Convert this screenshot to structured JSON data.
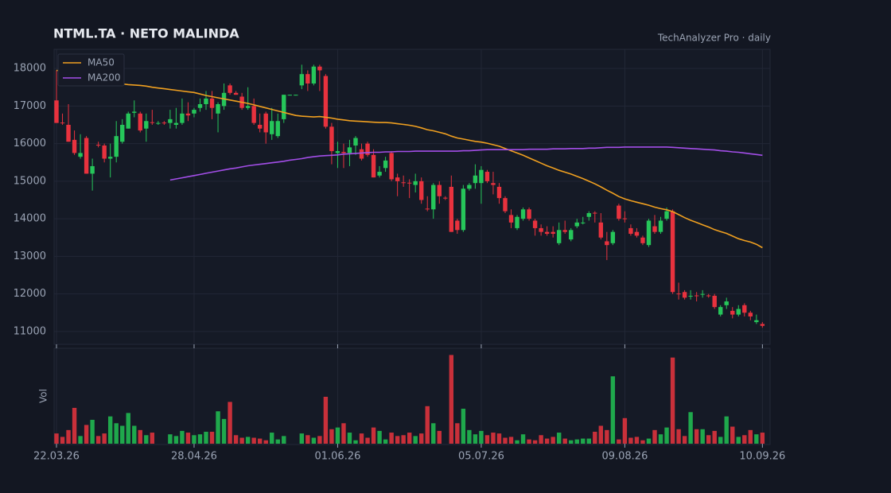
{
  "chart_data": {
    "type": "candlestick",
    "title": "NTML.TA  ·  NETO MALINDA",
    "subtitle": "TechAnalyzer Pro · daily",
    "volume_label": "Vol",
    "legend": "upper left",
    "grid": true,
    "up_color": "#26c65a",
    "down_color": "#e8323e",
    "volume_up_color": "#1fa84c",
    "volume_down_color": "#c9303a",
    "ylim": [
      10680,
      18510
    ],
    "yticks": [
      11000,
      12000,
      13000,
      14000,
      15000,
      16000,
      17000,
      18000
    ],
    "vlim": [
      0,
      110
    ],
    "categories": [
      "22.03.26",
      null,
      null,
      null,
      null,
      null,
      null,
      null,
      null,
      null,
      null,
      null,
      null,
      null,
      null,
      null,
      null,
      null,
      null,
      null,
      null,
      null,
      null,
      "28.04.26",
      null,
      null,
      null,
      null,
      null,
      null,
      null,
      null,
      null,
      null,
      null,
      null,
      null,
      null,
      null,
      null,
      null,
      null,
      null,
      null,
      null,
      null,
      null,
      "01.06.26",
      null,
      null,
      null,
      null,
      null,
      null,
      null,
      null,
      null,
      null,
      null,
      null,
      null,
      null,
      null,
      null,
      null,
      null,
      null,
      null,
      null,
      null,
      null,
      "05.07.26",
      null,
      null,
      null,
      null,
      null,
      null,
      null,
      null,
      null,
      null,
      null,
      null,
      null,
      null,
      null,
      null,
      null,
      null,
      null,
      null,
      null,
      null,
      null,
      "09.08.26",
      null,
      null,
      null,
      null,
      null,
      null,
      null,
      null,
      null,
      null,
      null,
      null,
      null,
      null,
      null,
      null,
      null,
      null,
      null,
      null,
      null,
      null,
      "10.09.26"
    ],
    "ohlc": [
      [
        17150,
        17950,
        16550,
        16550
      ],
      [
        16560,
        16800,
        16500,
        16540
      ],
      [
        16500,
        17050,
        16050,
        16050
      ],
      [
        16100,
        16350,
        15700,
        15750
      ],
      [
        15650,
        16250,
        15600,
        15750
      ],
      [
        16150,
        16200,
        15200,
        15200
      ],
      [
        15200,
        15600,
        14750,
        15400
      ],
      [
        15970,
        16050,
        15900,
        15950
      ],
      [
        15950,
        16000,
        15500,
        15600
      ],
      [
        15600,
        16000,
        15100,
        15650
      ],
      [
        15650,
        16600,
        15500,
        16200
      ],
      [
        16050,
        16650,
        16000,
        16500
      ],
      [
        16400,
        16850,
        16400,
        16800
      ],
      [
        16820,
        17150,
        16700,
        16850
      ],
      [
        16800,
        16850,
        16300,
        16350
      ],
      [
        16400,
        16800,
        16050,
        16600
      ],
      [
        16570,
        16900,
        16500,
        16550
      ],
      [
        16540,
        16600,
        16500,
        16550
      ],
      [
        16560,
        16600,
        16500,
        16550
      ],
      [
        16550,
        16900,
        16400,
        16650
      ],
      [
        16500,
        16950,
        16400,
        16550
      ],
      [
        16550,
        17200,
        16500,
        16800
      ],
      [
        16800,
        17100,
        16600,
        16750
      ],
      [
        16800,
        16950,
        16700,
        16900
      ],
      [
        16950,
        17200,
        16850,
        17050
      ],
      [
        17050,
        17400,
        16900,
        17200
      ],
      [
        17200,
        17400,
        16650,
        16950
      ],
      [
        16800,
        17100,
        16300,
        17050
      ],
      [
        17000,
        17600,
        16900,
        17350
      ],
      [
        17550,
        17600,
        17300,
        17350
      ],
      [
        17350,
        17400,
        17300,
        17300
      ],
      [
        17250,
        17350,
        16900,
        16950
      ],
      [
        16950,
        17500,
        16900,
        17000
      ],
      [
        17000,
        17200,
        16500,
        16550
      ],
      [
        16500,
        16800,
        16300,
        16400
      ],
      [
        16800,
        16850,
        16000,
        16300
      ],
      [
        16250,
        16950,
        16100,
        16600
      ],
      [
        16200,
        16800,
        16150,
        16600
      ],
      [
        16650,
        17300,
        16550,
        17300
      ],
      [
        17290,
        17300,
        17280,
        17300
      ],
      [
        17290,
        17300,
        17280,
        17300
      ],
      [
        17550,
        18100,
        17450,
        17850
      ],
      [
        17850,
        17950,
        17400,
        17600
      ],
      [
        17600,
        18100,
        17550,
        18050
      ],
      [
        18050,
        18100,
        17400,
        17950
      ],
      [
        17800,
        17850,
        16400,
        16450
      ],
      [
        16450,
        16550,
        15450,
        15800
      ],
      [
        15750,
        16050,
        15350,
        15800
      ],
      [
        15780,
        16000,
        15350,
        15750
      ],
      [
        15750,
        16100,
        15400,
        15900
      ],
      [
        15950,
        16200,
        15700,
        16150
      ],
      [
        15850,
        16000,
        15550,
        15600
      ],
      [
        16000,
        16050,
        15650,
        15700
      ],
      [
        15700,
        15850,
        15100,
        15100
      ],
      [
        15150,
        15400,
        15100,
        15250
      ],
      [
        15350,
        15650,
        15250,
        15550
      ],
      [
        15750,
        15800,
        15000,
        15050
      ],
      [
        15100,
        15200,
        14600,
        15000
      ],
      [
        14970,
        15150,
        14850,
        14950
      ],
      [
        14960,
        15050,
        14550,
        14950
      ],
      [
        14900,
        15200,
        14700,
        15000
      ],
      [
        15000,
        15100,
        14400,
        14500
      ],
      [
        14270,
        14600,
        14200,
        14250
      ],
      [
        14250,
        14950,
        14000,
        14900
      ],
      [
        14900,
        15000,
        14400,
        14600
      ],
      [
        14560,
        14600,
        14500,
        14550
      ],
      [
        14850,
        15150,
        13650,
        13650
      ],
      [
        13950,
        14000,
        13600,
        13700
      ],
      [
        13700,
        14900,
        13650,
        14800
      ],
      [
        14800,
        14950,
        14750,
        14900
      ],
      [
        14950,
        15450,
        14800,
        15150
      ],
      [
        14950,
        15400,
        14400,
        15300
      ],
      [
        15250,
        15300,
        14950,
        15000
      ],
      [
        14950,
        15250,
        14650,
        14900
      ],
      [
        14850,
        14950,
        14400,
        14550
      ],
      [
        14550,
        14600,
        14150,
        14200
      ],
      [
        14100,
        14250,
        13750,
        13900
      ],
      [
        13750,
        14100,
        13700,
        14050
      ],
      [
        14000,
        14300,
        13950,
        14250
      ],
      [
        14250,
        14300,
        13950,
        14000
      ],
      [
        13950,
        14000,
        13550,
        13750
      ],
      [
        13750,
        13850,
        13550,
        13650
      ],
      [
        13650,
        13800,
        13550,
        13600
      ],
      [
        13650,
        13800,
        13500,
        13600
      ],
      [
        13350,
        13900,
        13300,
        13700
      ],
      [
        13700,
        13950,
        13600,
        13650
      ],
      [
        13450,
        13750,
        13400,
        13700
      ],
      [
        13800,
        14000,
        13750,
        13900
      ],
      [
        13890,
        14050,
        13850,
        13900
      ],
      [
        14050,
        14200,
        13950,
        14150
      ],
      [
        14160,
        14200,
        13900,
        14150
      ],
      [
        13900,
        14150,
        13450,
        13500
      ],
      [
        13400,
        13650,
        12900,
        13300
      ],
      [
        13350,
        13700,
        13300,
        13650
      ],
      [
        14350,
        14400,
        13950,
        14000
      ],
      [
        14010,
        14200,
        13900,
        14000
      ],
      [
        13750,
        13850,
        13550,
        13600
      ],
      [
        13650,
        13750,
        13500,
        13550
      ],
      [
        13500,
        13550,
        13300,
        13350
      ],
      [
        13300,
        14000,
        13250,
        13950
      ],
      [
        13800,
        14100,
        13600,
        13650
      ],
      [
        13650,
        14050,
        13600,
        13950
      ],
      [
        14000,
        14300,
        13950,
        14200
      ],
      [
        14200,
        14250,
        12000,
        12050
      ],
      [
        12010,
        12300,
        11850,
        12000
      ],
      [
        12050,
        12100,
        11850,
        11900
      ],
      [
        11940,
        12100,
        11850,
        11950
      ],
      [
        11960,
        12050,
        11800,
        11950
      ],
      [
        11990,
        12100,
        11900,
        12000
      ],
      [
        11960,
        12000,
        11900,
        11950
      ],
      [
        11950,
        12000,
        11600,
        11650
      ],
      [
        11450,
        11700,
        11400,
        11650
      ],
      [
        11700,
        11900,
        11600,
        11800
      ],
      [
        11550,
        11650,
        11350,
        11450
      ],
      [
        11450,
        11700,
        11400,
        11600
      ],
      [
        11700,
        11750,
        11400,
        11500
      ],
      [
        11500,
        11550,
        11300,
        11400
      ],
      [
        11250,
        11450,
        11200,
        11300
      ],
      [
        11200,
        11250,
        11100,
        11150
      ]
    ],
    "volume": [
      12,
      8,
      16,
      42,
      9,
      22,
      28,
      9,
      12,
      32,
      24,
      21,
      36,
      21,
      16,
      10,
      13,
      0,
      0,
      11,
      9,
      15,
      13,
      10,
      11,
      14,
      14,
      38,
      29,
      49,
      10,
      7,
      8,
      7,
      6,
      4,
      13,
      5,
      9,
      0,
      0,
      12,
      10,
      7,
      9,
      55,
      17,
      19,
      24,
      13,
      4,
      12,
      7,
      19,
      15,
      5,
      13,
      9,
      10,
      13,
      9,
      12,
      44,
      24,
      15,
      0,
      104,
      24,
      41,
      16,
      11,
      15,
      10,
      13,
      12,
      7,
      8,
      4,
      11,
      5,
      4,
      10,
      6,
      8,
      13,
      6,
      4,
      5,
      6,
      6,
      14,
      21,
      16,
      79,
      5,
      30,
      7,
      8,
      4,
      6,
      16,
      11,
      19,
      101,
      17,
      9,
      37,
      17,
      17,
      10,
      15,
      8,
      32,
      20,
      8,
      10,
      16,
      11,
      13
    ],
    "series": [
      {
        "name": "MA50",
        "color": "#f0a020",
        "values": [
          17950,
          17930,
          17900,
          17870,
          17830,
          17790,
          17750,
          17710,
          17670,
          17640,
          17610,
          17590,
          17570,
          17560,
          17550,
          17530,
          17500,
          17480,
          17460,
          17440,
          17420,
          17400,
          17380,
          17360,
          17320,
          17280,
          17250,
          17220,
          17190,
          17160,
          17130,
          17100,
          17070,
          17030,
          16990,
          16950,
          16910,
          16870,
          16830,
          16790,
          16750,
          16730,
          16720,
          16710,
          16720,
          16700,
          16680,
          16650,
          16630,
          16610,
          16600,
          16590,
          16580,
          16570,
          16560,
          16560,
          16550,
          16530,
          16510,
          16490,
          16460,
          16420,
          16370,
          16340,
          16300,
          16260,
          16200,
          16150,
          16120,
          16090,
          16060,
          16040,
          16010,
          15970,
          15930,
          15870,
          15810,
          15750,
          15690,
          15620,
          15550,
          15480,
          15410,
          15350,
          15290,
          15240,
          15190,
          15130,
          15070,
          15000,
          14930,
          14850,
          14760,
          14680,
          14590,
          14530,
          14480,
          14440,
          14400,
          14360,
          14310,
          14270,
          14240,
          14190,
          14110,
          14030,
          13960,
          13900,
          13840,
          13780,
          13710,
          13660,
          13610,
          13540,
          13470,
          13420,
          13380,
          13320,
          13230
        ]
      },
      {
        "name": "MA200",
        "color": "#a34ee8",
        "values": [
          null,
          null,
          null,
          null,
          null,
          null,
          null,
          null,
          null,
          null,
          null,
          null,
          null,
          null,
          null,
          null,
          null,
          null,
          null,
          15030,
          15060,
          15090,
          15120,
          15150,
          15180,
          15210,
          15240,
          15270,
          15300,
          15330,
          15350,
          15380,
          15410,
          15430,
          15450,
          15470,
          15490,
          15510,
          15530,
          15560,
          15580,
          15600,
          15630,
          15650,
          15670,
          15680,
          15690,
          15700,
          15720,
          15730,
          15740,
          15750,
          15760,
          15770,
          15770,
          15780,
          15780,
          15790,
          15790,
          15790,
          15800,
          15800,
          15800,
          15800,
          15800,
          15800,
          15800,
          15800,
          15810,
          15810,
          15820,
          15830,
          15840,
          15840,
          15840,
          15840,
          15840,
          15840,
          15840,
          15850,
          15850,
          15850,
          15850,
          15860,
          15860,
          15860,
          15870,
          15870,
          15870,
          15880,
          15880,
          15890,
          15900,
          15900,
          15900,
          15910,
          15910,
          15910,
          15910,
          15910,
          15910,
          15910,
          15910,
          15900,
          15890,
          15880,
          15870,
          15860,
          15850,
          15840,
          15830,
          15810,
          15800,
          15780,
          15770,
          15750,
          15730,
          15710,
          15690
        ]
      }
    ]
  }
}
